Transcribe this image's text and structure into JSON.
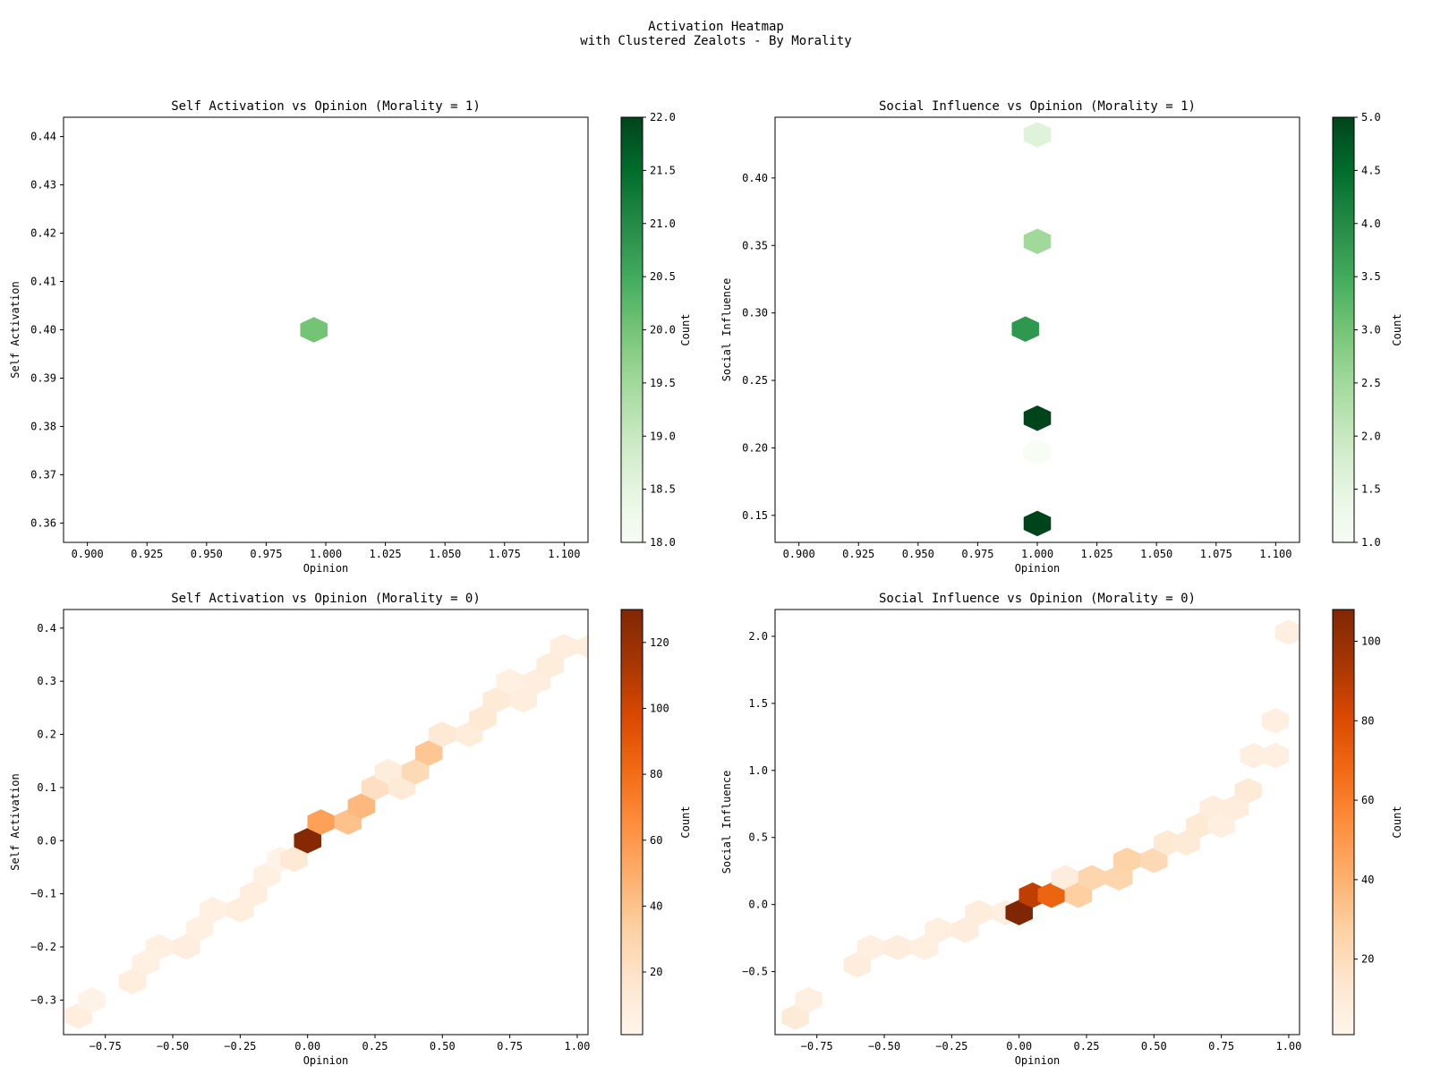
{
  "figure": {
    "title_line1": "Activation Heatmap",
    "title_line2": "with Clustered Zealots - By Morality"
  },
  "chart_data": [
    {
      "type": "heatmap",
      "title": "Self Activation vs Opinion (Morality = 1)",
      "xlabel": "Opinion",
      "ylabel": "Self Activation",
      "xlim": [
        0.89,
        1.11
      ],
      "ylim": [
        0.356,
        0.444
      ],
      "xticks": [
        0.9,
        0.925,
        0.95,
        0.975,
        1.0,
        1.025,
        1.05,
        1.075,
        1.1
      ],
      "xtick_labels": [
        "0.900",
        "0.925",
        "0.950",
        "0.975",
        "1.000",
        "1.025",
        "1.050",
        "1.075",
        "1.100"
      ],
      "yticks": [
        0.36,
        0.37,
        0.38,
        0.39,
        0.4,
        0.41,
        0.42,
        0.43,
        0.44
      ],
      "ytick_labels": [
        "0.36",
        "0.37",
        "0.38",
        "0.39",
        "0.40",
        "0.41",
        "0.42",
        "0.43",
        "0.44"
      ],
      "colormap": "Greens",
      "colorbar": {
        "label": "Count",
        "min": 18.0,
        "max": 22.0,
        "ticks": [
          18.0,
          18.5,
          19.0,
          19.5,
          20.0,
          20.5,
          21.0,
          21.5,
          22.0
        ],
        "tick_labels": [
          "18.0",
          "18.5",
          "19.0",
          "19.5",
          "20.0",
          "20.5",
          "21.0",
          "21.5",
          "22.0"
        ]
      },
      "bins": [
        {
          "x": 0.995,
          "y": 0.4,
          "count": 20
        }
      ]
    },
    {
      "type": "heatmap",
      "title": "Social Influence vs Opinion (Morality = 1)",
      "xlabel": "Opinion",
      "ylabel": "Social Influence",
      "xlim": [
        0.89,
        1.11
      ],
      "ylim": [
        0.13,
        0.445
      ],
      "xticks": [
        0.9,
        0.925,
        0.95,
        0.975,
        1.0,
        1.025,
        1.05,
        1.075,
        1.1
      ],
      "xtick_labels": [
        "0.900",
        "0.925",
        "0.950",
        "0.975",
        "1.000",
        "1.025",
        "1.050",
        "1.075",
        "1.100"
      ],
      "yticks": [
        0.15,
        0.2,
        0.25,
        0.3,
        0.35,
        0.4
      ],
      "ytick_labels": [
        "0.15",
        "0.20",
        "0.25",
        "0.30",
        "0.35",
        "0.40"
      ],
      "colormap": "Greens",
      "colorbar": {
        "label": "Count",
        "min": 1.0,
        "max": 5.0,
        "ticks": [
          1.0,
          1.5,
          2.0,
          2.5,
          3.0,
          3.5,
          4.0,
          4.5,
          5.0
        ],
        "tick_labels": [
          "1.0",
          "1.5",
          "2.0",
          "2.5",
          "3.0",
          "3.5",
          "4.0",
          "4.5",
          "5.0"
        ]
      },
      "bins": [
        {
          "x": 1.0,
          "y": 0.432,
          "count": 1.6
        },
        {
          "x": 1.0,
          "y": 0.353,
          "count": 2.5
        },
        {
          "x": 0.995,
          "y": 0.288,
          "count": 3.8
        },
        {
          "x": 1.0,
          "y": 0.222,
          "count": 5
        },
        {
          "x": 1.0,
          "y": 0.197,
          "count": 1
        },
        {
          "x": 1.0,
          "y": 0.144,
          "count": 5
        }
      ]
    },
    {
      "type": "heatmap",
      "title": "Self Activation vs Opinion (Morality = 0)",
      "xlabel": "Opinion",
      "ylabel": "Self Activation",
      "xlim": [
        -0.905,
        1.04
      ],
      "ylim": [
        -0.365,
        0.435
      ],
      "xticks": [
        -0.75,
        -0.5,
        -0.25,
        0.0,
        0.25,
        0.5,
        0.75,
        1.0
      ],
      "xtick_labels": [
        "−0.75",
        "−0.50",
        "−0.25",
        "0.00",
        "0.25",
        "0.50",
        "0.75",
        "1.00"
      ],
      "yticks": [
        -0.3,
        -0.2,
        -0.1,
        0.0,
        0.1,
        0.2,
        0.3,
        0.4
      ],
      "ytick_labels": [
        "−0.3",
        "−0.2",
        "−0.1",
        "0.0",
        "0.1",
        "0.2",
        "0.3",
        "0.4"
      ],
      "colormap": "Oranges",
      "colorbar": {
        "label": "Count",
        "min": 1,
        "max": 130,
        "ticks": [
          20,
          40,
          60,
          80,
          100,
          120
        ],
        "tick_labels": [
          "20",
          "40",
          "60",
          "80",
          "100",
          "120"
        ]
      },
      "bins": [
        {
          "x": -0.85,
          "y": -0.33,
          "count": 8
        },
        {
          "x": -0.8,
          "y": -0.3,
          "count": 4
        },
        {
          "x": -0.65,
          "y": -0.265,
          "count": 8
        },
        {
          "x": -0.6,
          "y": -0.23,
          "count": 6
        },
        {
          "x": -0.55,
          "y": -0.2,
          "count": 6
        },
        {
          "x": -0.45,
          "y": -0.2,
          "count": 8
        },
        {
          "x": -0.4,
          "y": -0.165,
          "count": 6
        },
        {
          "x": -0.35,
          "y": -0.13,
          "count": 6
        },
        {
          "x": -0.25,
          "y": -0.13,
          "count": 8
        },
        {
          "x": -0.2,
          "y": -0.1,
          "count": 8
        },
        {
          "x": -0.15,
          "y": -0.065,
          "count": 6
        },
        {
          "x": -0.1,
          "y": -0.035,
          "count": 4
        },
        {
          "x": -0.05,
          "y": -0.035,
          "count": 14
        },
        {
          "x": 0.0,
          "y": 0.0,
          "count": 128
        },
        {
          "x": 0.05,
          "y": 0.035,
          "count": 56
        },
        {
          "x": 0.15,
          "y": 0.035,
          "count": 40
        },
        {
          "x": 0.2,
          "y": 0.065,
          "count": 44
        },
        {
          "x": 0.25,
          "y": 0.1,
          "count": 22
        },
        {
          "x": 0.3,
          "y": 0.13,
          "count": 10
        },
        {
          "x": 0.35,
          "y": 0.1,
          "count": 12
        },
        {
          "x": 0.4,
          "y": 0.13,
          "count": 26
        },
        {
          "x": 0.45,
          "y": 0.165,
          "count": 38
        },
        {
          "x": 0.5,
          "y": 0.2,
          "count": 14
        },
        {
          "x": 0.6,
          "y": 0.2,
          "count": 10
        },
        {
          "x": 0.65,
          "y": 0.23,
          "count": 14
        },
        {
          "x": 0.7,
          "y": 0.265,
          "count": 12
        },
        {
          "x": 0.75,
          "y": 0.3,
          "count": 6
        },
        {
          "x": 0.8,
          "y": 0.265,
          "count": 8
        },
        {
          "x": 0.85,
          "y": 0.3,
          "count": 8
        },
        {
          "x": 0.9,
          "y": 0.33,
          "count": 10
        },
        {
          "x": 0.95,
          "y": 0.365,
          "count": 8
        },
        {
          "x": 1.05,
          "y": 0.365,
          "count": 8
        },
        {
          "x": 1.1,
          "y": 0.4,
          "count": 8
        }
      ]
    },
    {
      "type": "heatmap",
      "title": "Social Influence vs Opinion (Morality = 0)",
      "xlabel": "Opinion",
      "ylabel": "Social Influence",
      "xlim": [
        -0.905,
        1.04
      ],
      "ylim": [
        -0.97,
        2.2
      ],
      "xticks": [
        -0.75,
        -0.5,
        -0.25,
        0.0,
        0.25,
        0.5,
        0.75,
        1.0
      ],
      "xtick_labels": [
        "−0.75",
        "−0.50",
        "−0.25",
        "0.00",
        "0.25",
        "0.50",
        "0.75",
        "1.00"
      ],
      "yticks": [
        -0.5,
        0.0,
        0.5,
        1.0,
        1.5,
        2.0
      ],
      "ytick_labels": [
        "−0.5",
        "0.0",
        "0.5",
        "1.0",
        "1.5",
        "2.0"
      ],
      "colormap": "Oranges",
      "colorbar": {
        "label": "Count",
        "min": 1,
        "max": 108,
        "ticks": [
          20,
          40,
          60,
          80,
          100
        ],
        "tick_labels": [
          "20",
          "40",
          "60",
          "80",
          "100"
        ]
      },
      "bins": [
        {
          "x": -0.83,
          "y": -0.84,
          "count": 10
        },
        {
          "x": -0.78,
          "y": -0.71,
          "count": 6
        },
        {
          "x": -0.6,
          "y": -0.45,
          "count": 8
        },
        {
          "x": -0.55,
          "y": -0.32,
          "count": 6
        },
        {
          "x": -0.45,
          "y": -0.32,
          "count": 8
        },
        {
          "x": -0.35,
          "y": -0.32,
          "count": 6
        },
        {
          "x": -0.3,
          "y": -0.19,
          "count": 6
        },
        {
          "x": -0.2,
          "y": -0.19,
          "count": 8
        },
        {
          "x": -0.15,
          "y": -0.06,
          "count": 8
        },
        {
          "x": -0.05,
          "y": -0.06,
          "count": 6
        },
        {
          "x": 0.0,
          "y": -0.06,
          "count": 108
        },
        {
          "x": 0.05,
          "y": 0.07,
          "count": 88
        },
        {
          "x": 0.12,
          "y": 0.07,
          "count": 70
        },
        {
          "x": 0.17,
          "y": 0.2,
          "count": 8
        },
        {
          "x": 0.22,
          "y": 0.07,
          "count": 28
        },
        {
          "x": 0.27,
          "y": 0.2,
          "count": 24
        },
        {
          "x": 0.37,
          "y": 0.2,
          "count": 24
        },
        {
          "x": 0.4,
          "y": 0.33,
          "count": 26
        },
        {
          "x": 0.5,
          "y": 0.33,
          "count": 22
        },
        {
          "x": 0.55,
          "y": 0.46,
          "count": 12
        },
        {
          "x": 0.62,
          "y": 0.46,
          "count": 10
        },
        {
          "x": 0.67,
          "y": 0.59,
          "count": 12
        },
        {
          "x": 0.72,
          "y": 0.72,
          "count": 8
        },
        {
          "x": 0.75,
          "y": 0.59,
          "count": 6
        },
        {
          "x": 0.8,
          "y": 0.72,
          "count": 8
        },
        {
          "x": 0.85,
          "y": 0.85,
          "count": 10
        },
        {
          "x": 0.87,
          "y": 1.11,
          "count": 6
        },
        {
          "x": 0.95,
          "y": 1.11,
          "count": 6
        },
        {
          "x": 0.95,
          "y": 1.37,
          "count": 6
        },
        {
          "x": 1.0,
          "y": 2.03,
          "count": 6
        }
      ]
    }
  ]
}
